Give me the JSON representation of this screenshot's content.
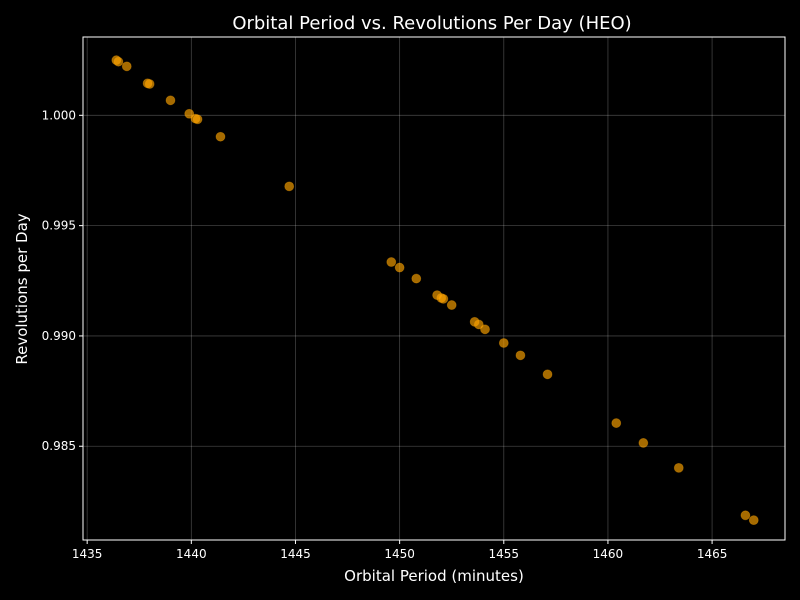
{
  "chart_data": {
    "type": "scatter",
    "title": "Orbital Period vs. Revolutions Per Day (HEO)",
    "xlabel": "Orbital Period (minutes)",
    "ylabel": "Revolutions per Day",
    "xlim": [
      1434.8,
      1468.5
    ],
    "ylim": [
      0.98075,
      1.00355
    ],
    "xticks": [
      1435,
      1440,
      1445,
      1450,
      1455,
      1460,
      1465
    ],
    "yticks": [
      0.985,
      0.99,
      0.995,
      1.0
    ],
    "xtick_labels": [
      "1435",
      "1440",
      "1445",
      "1450",
      "1455",
      "1460",
      "1465"
    ],
    "ytick_labels": [
      "0.985",
      "0.990",
      "0.995",
      "1.000"
    ],
    "grid": true,
    "marker_color": "#ffa500",
    "background_color": "#000000",
    "points": [
      {
        "x": 1436.4,
        "y": 1.0025
      },
      {
        "x": 1436.5,
        "y": 1.00243
      },
      {
        "x": 1436.9,
        "y": 1.00222
      },
      {
        "x": 1437.9,
        "y": 1.00145
      },
      {
        "x": 1438.0,
        "y": 1.00142
      },
      {
        "x": 1439.0,
        "y": 1.00068
      },
      {
        "x": 1439.9,
        "y": 1.00007
      },
      {
        "x": 1440.2,
        "y": 0.99985
      },
      {
        "x": 1440.3,
        "y": 0.99982
      },
      {
        "x": 1441.4,
        "y": 0.99903
      },
      {
        "x": 1444.7,
        "y": 0.99678
      },
      {
        "x": 1449.6,
        "y": 0.99335
      },
      {
        "x": 1450.0,
        "y": 0.9931
      },
      {
        "x": 1450.8,
        "y": 0.9926
      },
      {
        "x": 1451.8,
        "y": 0.99185
      },
      {
        "x": 1452.0,
        "y": 0.99172
      },
      {
        "x": 1452.1,
        "y": 0.99168
      },
      {
        "x": 1452.5,
        "y": 0.9914
      },
      {
        "x": 1453.6,
        "y": 0.99064
      },
      {
        "x": 1453.8,
        "y": 0.99052
      },
      {
        "x": 1454.1,
        "y": 0.9903
      },
      {
        "x": 1455.0,
        "y": 0.98968
      },
      {
        "x": 1455.8,
        "y": 0.98912
      },
      {
        "x": 1457.1,
        "y": 0.98826
      },
      {
        "x": 1460.4,
        "y": 0.98605
      },
      {
        "x": 1461.7,
        "y": 0.98515
      },
      {
        "x": 1463.4,
        "y": 0.98402
      },
      {
        "x": 1466.6,
        "y": 0.98187
      },
      {
        "x": 1467.0,
        "y": 0.98165
      }
    ]
  }
}
